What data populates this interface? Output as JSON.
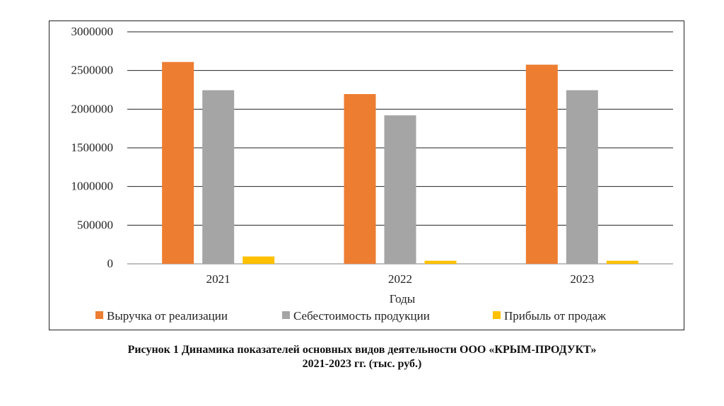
{
  "chart_data": {
    "type": "bar",
    "categories": [
      "2021",
      "2022",
      "2023"
    ],
    "series": [
      {
        "name": "Выручка от реализации",
        "values": [
          2610000,
          2195000,
          2575000
        ],
        "color": "#ED7D31"
      },
      {
        "name": "Себестоимость продукции",
        "values": [
          2245000,
          1920000,
          2245000
        ],
        "color": "#A5A5A5"
      },
      {
        "name": "Прибыль от продаж",
        "values": [
          95000,
          40000,
          40000
        ],
        "color": "#FFC000"
      }
    ],
    "yticks": [
      "0",
      "500000",
      "1000000",
      "1500000",
      "2000000",
      "2500000",
      "3000000"
    ],
    "ylim": [
      0,
      3000000
    ],
    "xlabel": "Годы",
    "ylabel": "",
    "grid": true,
    "legend_position": "bottom"
  },
  "caption": {
    "line1": "Рисунок 1 Динамика показателей основных видов деятельности ООО «КРЫМ-ПРОДУКТ»",
    "line2": "2021-2023 гг. (тыс. руб.)"
  }
}
